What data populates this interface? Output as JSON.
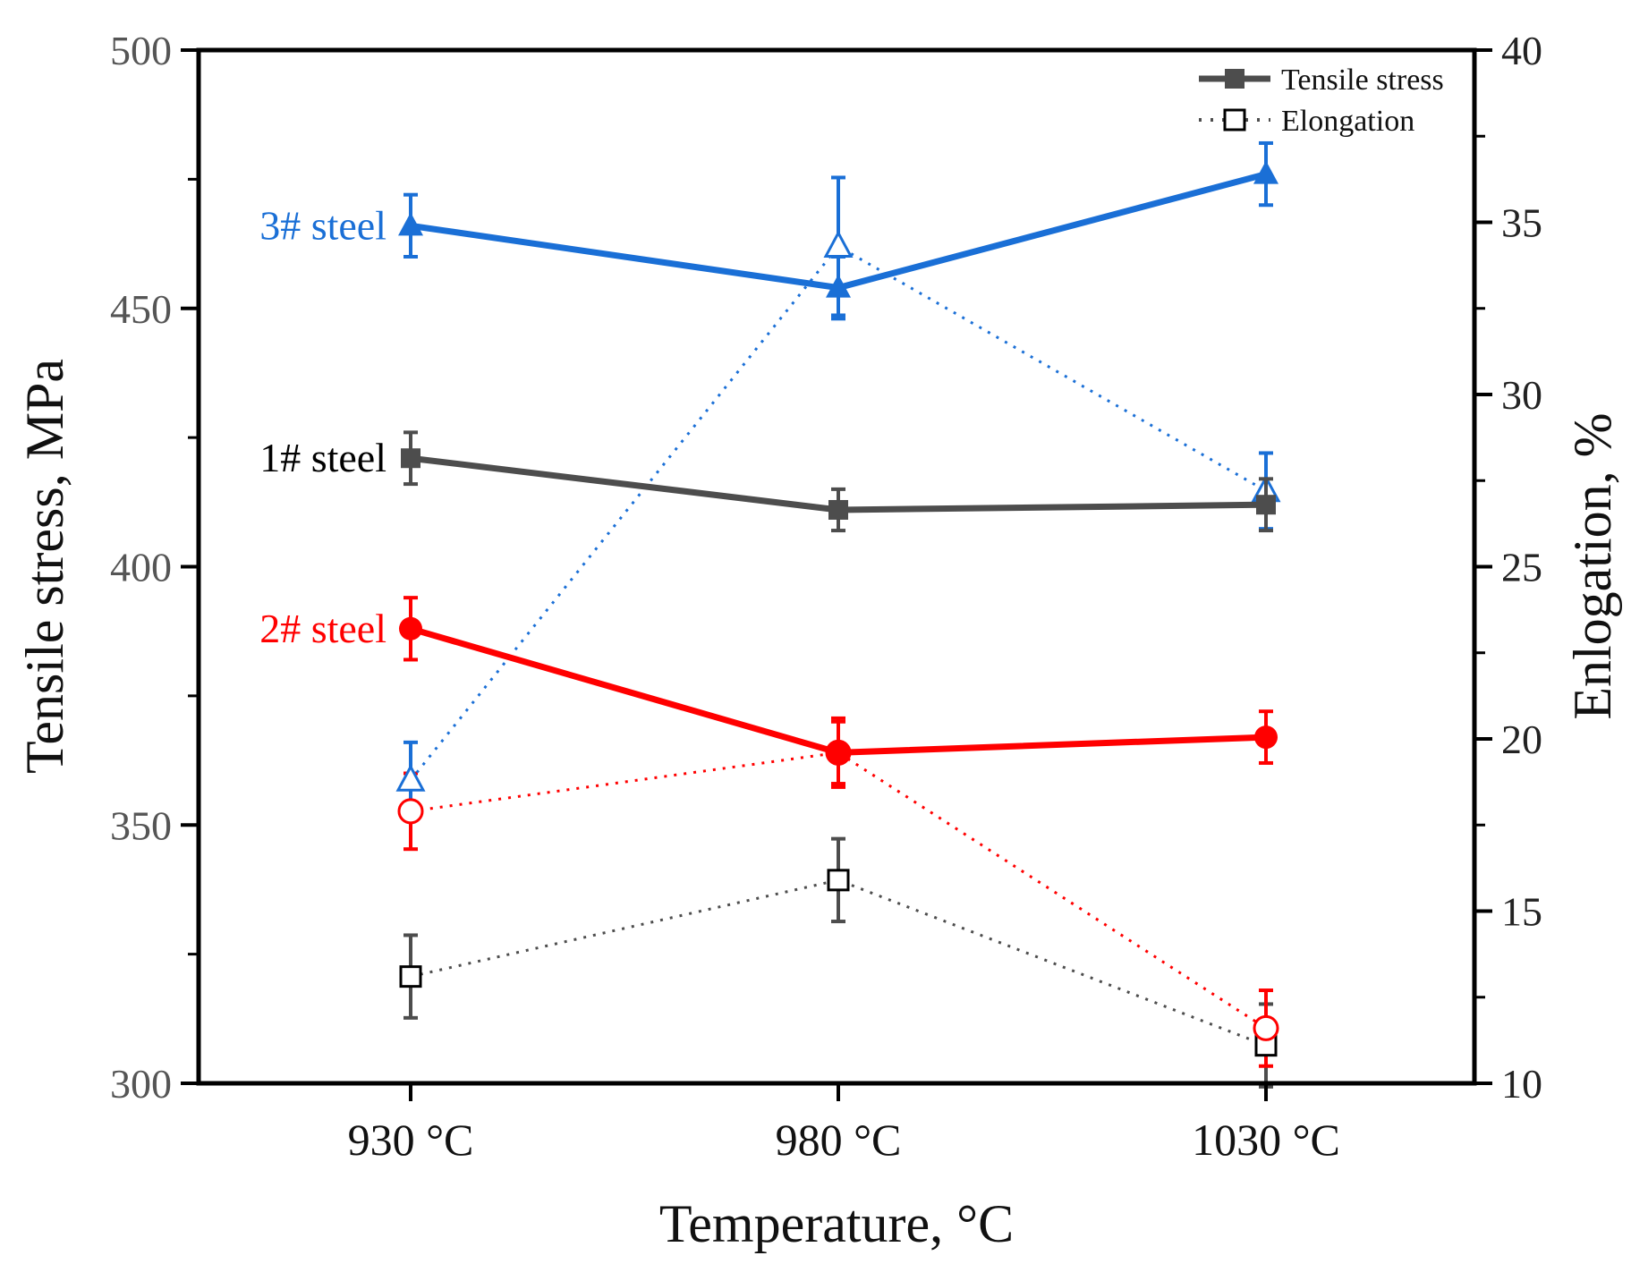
{
  "chart_data": {
    "type": "line",
    "xlabel": "Temperature, °C",
    "ylabel_left": "Tensile stress, MPa",
    "ylabel_right": "Enlogation, %",
    "categories": [
      "930 °C",
      "980 °C",
      "1030 °C"
    ],
    "y_left_range": [
      300,
      500
    ],
    "y_left_ticks": [
      "300",
      "350",
      "400",
      "450",
      "500"
    ],
    "y_right_range": [
      10,
      40
    ],
    "y_right_ticks": [
      "10",
      "15",
      "20",
      "25",
      "30",
      "35",
      "40"
    ],
    "grid": false,
    "legend_position": "top-right",
    "legend": [
      {
        "label": "Tensile stress",
        "style": "solid",
        "marker": "filled-square"
      },
      {
        "label": "Elongation",
        "style": "dotted",
        "marker": "open-square"
      }
    ],
    "series": [
      {
        "label": "1# steel",
        "color": "#4d4d4d",
        "marker": "square",
        "tensile_stress": [
          421,
          411,
          412
        ],
        "tensile_error": [
          5,
          4,
          5
        ],
        "elongation": [
          13.1,
          15.9,
          11.1
        ],
        "elongation_error": [
          1.2,
          1.2,
          1.2
        ]
      },
      {
        "label": "2# steel",
        "color": "#ff0000",
        "marker": "circle",
        "tensile_stress": [
          388,
          364,
          367
        ],
        "tensile_error": [
          6,
          6,
          5
        ],
        "elongation": [
          17.9,
          19.6,
          11.6
        ],
        "elongation_error": [
          1.1,
          1.0,
          1.1
        ]
      },
      {
        "label": "3# steel",
        "color": "#1a6fd6",
        "marker": "triangle",
        "tensile_stress": [
          466,
          454,
          476
        ],
        "tensile_error": [
          6,
          6,
          6
        ],
        "elongation": [
          18.8,
          34.3,
          27.2
        ],
        "elongation_error": [
          1.1,
          2.0,
          1.1
        ]
      }
    ]
  }
}
